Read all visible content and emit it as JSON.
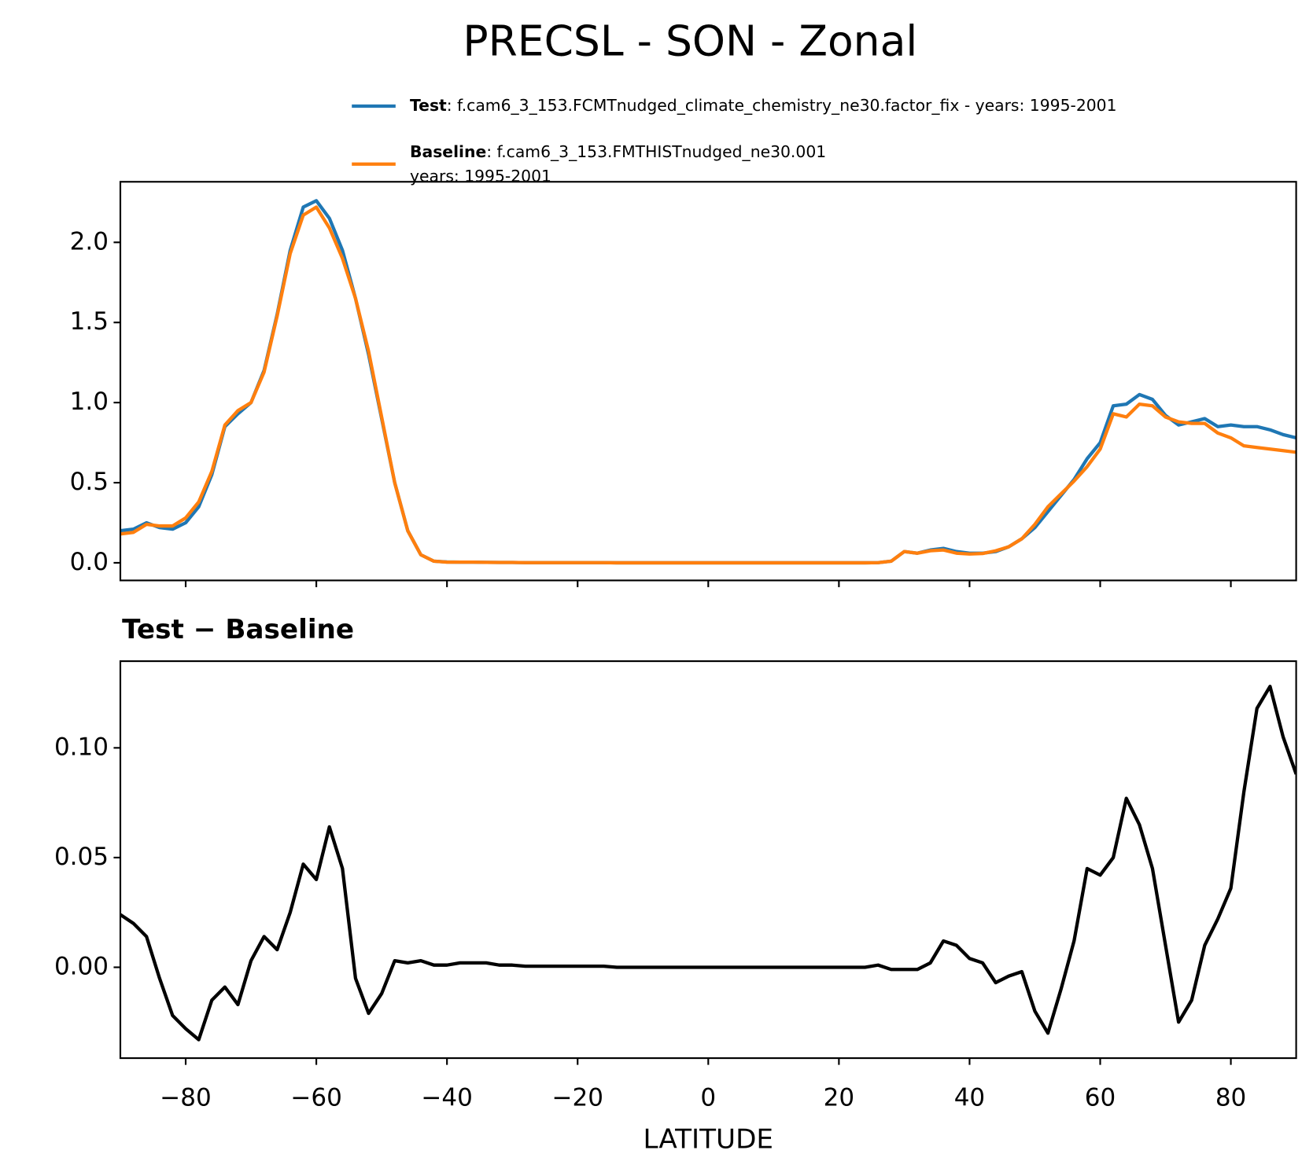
{
  "title": "PRECSL - SON - Zonal",
  "chart_data": [
    {
      "type": "line",
      "x": [
        -90,
        -88,
        -86,
        -84,
        -82,
        -80,
        -78,
        -76,
        -74,
        -72,
        -70,
        -68,
        -66,
        -64,
        -62,
        -60,
        -58,
        -56,
        -54,
        -52,
        -50,
        -48,
        -46,
        -44,
        -42,
        -40,
        -38,
        -36,
        -34,
        -32,
        -30,
        -28,
        -26,
        -24,
        -22,
        -20,
        -18,
        -16,
        -14,
        -12,
        -10,
        -8,
        -6,
        -4,
        -2,
        0,
        2,
        4,
        6,
        8,
        10,
        12,
        14,
        16,
        18,
        20,
        22,
        24,
        26,
        28,
        30,
        32,
        34,
        36,
        38,
        40,
        42,
        44,
        46,
        48,
        50,
        52,
        54,
        56,
        58,
        60,
        62,
        64,
        66,
        68,
        70,
        72,
        74,
        76,
        78,
        80,
        82,
        84,
        86,
        88,
        90
      ],
      "series": [
        {
          "name": "Test",
          "description": [
            ": f.cam6_3_153.FCMTnudged_climate_chemistry_ne30.factor_fix - years: 1995-2001"
          ],
          "color": "#1f77b4",
          "values": [
            0.2,
            0.21,
            0.25,
            0.22,
            0.21,
            0.25,
            0.35,
            0.55,
            0.85,
            0.93,
            1.0,
            1.2,
            1.55,
            1.95,
            2.22,
            2.26,
            2.15,
            1.95,
            1.65,
            1.3,
            0.9,
            0.5,
            0.2,
            0.05,
            0.01,
            0.005,
            0.004,
            0.004,
            0.003,
            0.002,
            0.002,
            0.001,
            0.001,
            0.001,
            0.001,
            0.001,
            0.001,
            0.001,
            0,
            0,
            0,
            0,
            0,
            0,
            0,
            0,
            0,
            0,
            0,
            0,
            0,
            0,
            0,
            0,
            0,
            0,
            0,
            0,
            0.001,
            0.01,
            0.07,
            0.06,
            0.08,
            0.09,
            0.07,
            0.06,
            0.06,
            0.07,
            0.1,
            0.15,
            0.22,
            0.32,
            0.42,
            0.52,
            0.65,
            0.75,
            0.98,
            0.99,
            1.05,
            1.02,
            0.92,
            0.86,
            0.88,
            0.9,
            0.85,
            0.86,
            0.85,
            0.85,
            0.83,
            0.8,
            0.78
          ]
        },
        {
          "name": "Baseline",
          "description": [
            ": f.cam6_3_153.FMTHISTnudged_ne30.001",
            "years: 1995-2001"
          ],
          "color": "#ff7f0e",
          "values": [
            0.18,
            0.19,
            0.24,
            0.23,
            0.23,
            0.28,
            0.38,
            0.57,
            0.86,
            0.95,
            1.0,
            1.19,
            1.54,
            1.93,
            2.17,
            2.22,
            2.09,
            1.9,
            1.65,
            1.32,
            0.91,
            0.5,
            0.2,
            0.05,
            0.01,
            0.004,
            0.004,
            0.004,
            0.003,
            0.002,
            0.002,
            0.001,
            0.001,
            0.001,
            0.001,
            0.001,
            0.001,
            0.001,
            0,
            0,
            0,
            0,
            0,
            0,
            0,
            0,
            0,
            0,
            0,
            0,
            0,
            0,
            0,
            0,
            0,
            0,
            0,
            0,
            0.001,
            0.01,
            0.07,
            0.06,
            0.075,
            0.08,
            0.06,
            0.055,
            0.058,
            0.075,
            0.1,
            0.15,
            0.24,
            0.35,
            0.43,
            0.51,
            0.6,
            0.71,
            0.93,
            0.91,
            0.99,
            0.98,
            0.91,
            0.88,
            0.87,
            0.87,
            0.81,
            0.78,
            0.73,
            0.72,
            0.71,
            0.7,
            0.69
          ]
        }
      ],
      "xlim": [
        -90,
        90
      ],
      "xticks": [
        {
          "value": -80,
          "label": "−80"
        },
        {
          "value": -60,
          "label": "−60"
        },
        {
          "value": -40,
          "label": "−40"
        },
        {
          "value": -20,
          "label": "−20"
        },
        0,
        20,
        40,
        60,
        80
      ],
      "ylim": [
        -0.11,
        2.378
      ],
      "yticks": [
        {
          "value": 0,
          "label": "0.0"
        },
        0.5,
        {
          "value": 1,
          "label": "1.0"
        },
        1.5,
        {
          "value": 2,
          "label": "2.0"
        }
      ]
    },
    {
      "type": "line",
      "title": "Test − Baseline",
      "xlabel": "LATITUDE",
      "x": [
        -90,
        -88,
        -86,
        -84,
        -82,
        -80,
        -78,
        -76,
        -74,
        -72,
        -70,
        -68,
        -66,
        -64,
        -62,
        -60,
        -58,
        -56,
        -54,
        -52,
        -50,
        -48,
        -46,
        -44,
        -42,
        -40,
        -38,
        -36,
        -34,
        -32,
        -30,
        -28,
        -26,
        -24,
        -22,
        -20,
        -18,
        -16,
        -14,
        -12,
        -10,
        -8,
        -6,
        -4,
        -2,
        0,
        2,
        4,
        6,
        8,
        10,
        12,
        14,
        16,
        18,
        20,
        22,
        24,
        26,
        28,
        30,
        32,
        34,
        36,
        38,
        40,
        42,
        44,
        46,
        48,
        50,
        52,
        54,
        56,
        58,
        60,
        62,
        64,
        66,
        68,
        70,
        72,
        74,
        76,
        78,
        80,
        82,
        84,
        86,
        88,
        90
      ],
      "series": [
        {
          "color": "#000000",
          "values": [
            0.024,
            0.02,
            0.014,
            -0.005,
            -0.022,
            -0.028,
            -0.033,
            -0.015,
            -0.009,
            -0.017,
            0.003,
            0.014,
            0.008,
            0.025,
            0.047,
            0.04,
            0.064,
            0.045,
            -0.005,
            -0.021,
            -0.012,
            0.003,
            0.002,
            0.003,
            0.001,
            0.001,
            0.002,
            0.002,
            0.002,
            0.001,
            0.001,
            0.0005,
            0.0005,
            0.0005,
            0.0005,
            0.0005,
            0.0005,
            0.0005,
            0,
            0,
            0,
            0,
            0,
            0,
            0,
            0,
            0,
            0,
            0,
            0,
            0,
            0,
            0,
            0,
            0,
            0,
            0,
            0,
            0.001,
            -0.001,
            -0.001,
            -0.001,
            0.002,
            0.012,
            0.01,
            0.004,
            0.002,
            -0.007,
            -0.004,
            -0.002,
            -0.02,
            -0.03,
            -0.01,
            0.012,
            0.045,
            0.042,
            0.05,
            0.077,
            0.065,
            0.045,
            0.01,
            -0.025,
            -0.015,
            0.01,
            0.022,
            0.036,
            0.08,
            0.118,
            0.128,
            0.105,
            0.088
          ]
        }
      ],
      "xlim": [
        -90,
        90
      ],
      "xticks": [
        {
          "value": -80,
          "label": "−80"
        },
        {
          "value": -60,
          "label": "−60"
        },
        {
          "value": -40,
          "label": "−40"
        },
        {
          "value": -20,
          "label": "−20"
        },
        0,
        20,
        40,
        60,
        80
      ],
      "ylim": [
        -0.0414,
        0.1395
      ],
      "yticks": [
        {
          "value": 0,
          "label": "0.00"
        },
        0.05,
        {
          "value": 0.1,
          "label": "0.10"
        }
      ]
    }
  ]
}
